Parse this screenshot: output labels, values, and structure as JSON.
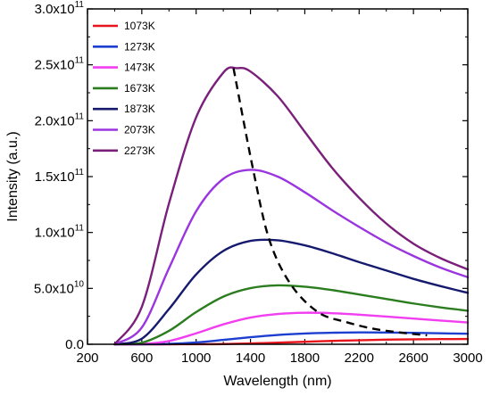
{
  "chart_data": {
    "type": "line",
    "xlabel": "Wavelength (nm)",
    "ylabel": "Intensity (a.u.)",
    "xlim": [
      200,
      3000
    ],
    "ylim": [
      0,
      300000000000
    ],
    "x_ticks": [
      200,
      600,
      1000,
      1400,
      1800,
      2200,
      2600,
      3000
    ],
    "y_ticks": [
      {
        "value": 0,
        "mantissa": "0.0",
        "exponent": ""
      },
      {
        "value": 50000000000,
        "mantissa": "5.0x10",
        "exponent": "10"
      },
      {
        "value": 100000000000,
        "mantissa": "1.0x10",
        "exponent": "11"
      },
      {
        "value": 150000000000,
        "mantissa": "1.5x10",
        "exponent": "11"
      },
      {
        "value": 200000000000,
        "mantissa": "2.0x10",
        "exponent": "11"
      },
      {
        "value": 250000000000,
        "mantissa": "2.5x10",
        "exponent": "11"
      },
      {
        "value": 300000000000,
        "mantissa": "3.0x10",
        "exponent": "11"
      }
    ],
    "legend_position": "top-left",
    "grid": false,
    "series": [
      {
        "name": "1073K",
        "color": "#e8141c",
        "x": [
          400,
          800,
          1200,
          1600,
          2000,
          2400,
          2800,
          3000
        ],
        "y": [
          0,
          0,
          200000000,
          1400000000,
          3000000000,
          4100000000,
          4600000000,
          4700000000
        ]
      },
      {
        "name": "1273K",
        "color": "#1c3fd0",
        "x": [
          400,
          600,
          800,
          1000,
          1200,
          1400,
          1600,
          1800,
          2000,
          2200,
          2400,
          2600,
          2800,
          3000
        ],
        "y": [
          0,
          0,
          300000000,
          1600000000,
          3900000000,
          6300000000,
          8300000000,
          9600000000,
          10300000000,
          10600000000,
          10500000000,
          10200000000,
          9800000000,
          9400000000
        ]
      },
      {
        "name": "1473K",
        "color": "#f03ef0",
        "x": [
          400,
          600,
          800,
          1000,
          1200,
          1400,
          1600,
          1800,
          2000,
          2200,
          2400,
          2600,
          2800,
          3000
        ],
        "y": [
          0,
          300000000,
          2900000000,
          9800000000,
          17800000000,
          23900000000,
          27100000000,
          28200000000,
          27800000000,
          26500000000,
          24800000000,
          23000000000,
          21200000000,
          19500000000
        ]
      },
      {
        "name": "1673K",
        "color": "#2b7d1f",
        "x": [
          400,
          600,
          800,
          1000,
          1200,
          1400,
          1600,
          1800,
          2000,
          2200,
          2400,
          2600,
          2800,
          3000
        ],
        "y": [
          0,
          1400000000,
          12000000000,
          28800000000,
          42600000000,
          50200000000,
          52700000000,
          51500000000,
          48500000000,
          44500000000,
          40500000000,
          36500000000,
          33000000000,
          30000000000
        ]
      },
      {
        "name": "1873K",
        "color": "#151a6e",
        "x": [
          400,
          600,
          800,
          1000,
          1200,
          1400,
          1600,
          1800,
          2000,
          2200,
          2400,
          2600,
          2800,
          3000
        ],
        "y": [
          0,
          5000000000,
          31500000000,
          62500000000,
          83500000000,
          92500000000,
          93000000000,
          88500000000,
          81500000000,
          73500000000,
          66000000000,
          58500000000,
          52000000000,
          46000000000
        ]
      },
      {
        "name": "2073K",
        "color": "#9a35e0",
        "x": [
          400,
          600,
          800,
          1000,
          1200,
          1400,
          1600,
          1800,
          2000,
          2200,
          2400,
          2600,
          2800,
          3000
        ],
        "y": [
          0,
          15000000000,
          68000000000,
          119000000000,
          148000000000,
          156000000000,
          150000000000,
          136000000000,
          120000000000,
          105000000000,
          91000000000,
          79000000000,
          68500000000,
          60000000000
        ]
      },
      {
        "name": "2273K",
        "color": "#7a1f7a",
        "x": [
          400,
          600,
          800,
          1000,
          1200,
          1300,
          1400,
          1600,
          1800,
          2000,
          2200,
          2400,
          2600,
          2800,
          3000
        ],
        "y": [
          0,
          33500000000,
          126000000000,
          203000000000,
          243000000000,
          247000000000,
          244000000000,
          222000000000,
          190000000000,
          158000000000,
          131000000000,
          108000000000,
          90000000000,
          77000000000,
          67000000000
        ]
      }
    ],
    "peak_trend": {
      "style": "dashed",
      "color": "#000000",
      "x": [
        1275,
        1420,
        1540,
        1700,
        1900,
        2100,
        2300,
        2500,
        2700
      ],
      "y": [
        247000000000,
        156000000000,
        93000000000,
        53000000000,
        28500000000,
        20000000000,
        14000000000,
        10500000000,
        8000000000
      ]
    }
  }
}
